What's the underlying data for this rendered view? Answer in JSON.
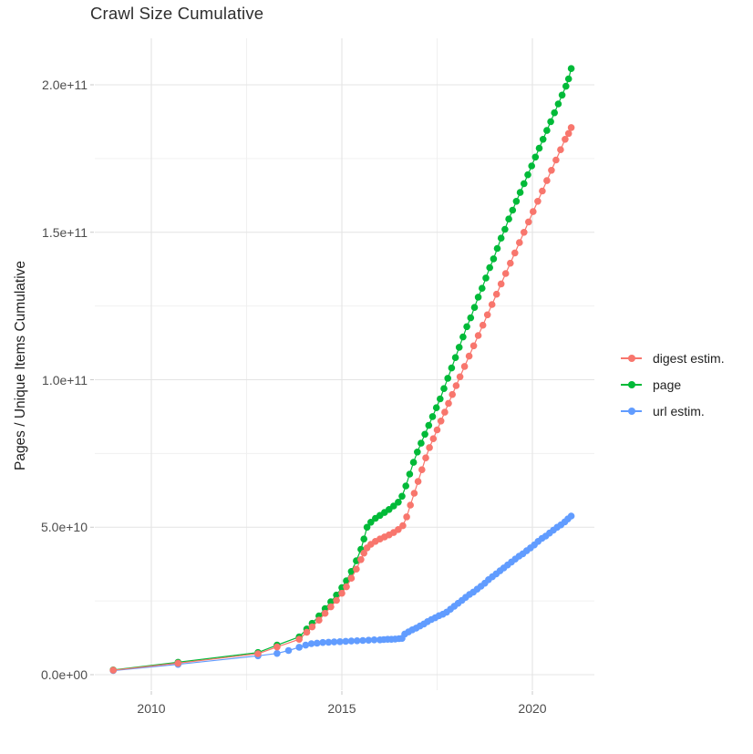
{
  "chart_data": {
    "type": "scatter",
    "title": "Crawl Size Cumulative",
    "xlabel": "",
    "ylabel": "Pages / Unique Items Cumulative",
    "value_unit": 10000000000.0,
    "x_range_years": [
      2008.5,
      2021.65
    ],
    "y_range": [
      0,
      216000000000.0
    ],
    "grid": true,
    "legend_position": "right",
    "x_ticks": [
      {
        "label": "2010",
        "year": 2010
      },
      {
        "label": "2015",
        "year": 2015
      },
      {
        "label": "2020",
        "year": 2020
      }
    ],
    "x_minor": [
      2012.5,
      2017.5
    ],
    "y_ticks": [
      {
        "label": "0.0e+00",
        "value": 0
      },
      {
        "label": "5.0e+10",
        "value": 5
      },
      {
        "label": "1.0e+11",
        "value": 10
      },
      {
        "label": "1.5e+11",
        "value": 15
      },
      {
        "label": "2.0e+11",
        "value": 20
      }
    ],
    "y_minor": [
      2.5,
      7.5,
      12.5,
      17.5
    ],
    "series": [
      {
        "name": "digest estim.",
        "color": "#F8766D",
        "points": [
          [
            2009.0,
            0.15
          ],
          [
            2010.7,
            0.39
          ],
          [
            2012.8,
            0.71
          ],
          [
            2013.3,
            0.94
          ],
          [
            2013.88,
            1.2
          ],
          [
            2014.08,
            1.44
          ],
          [
            2014.22,
            1.62
          ],
          [
            2014.4,
            1.85
          ],
          [
            2014.56,
            2.08
          ],
          [
            2014.71,
            2.3
          ],
          [
            2014.86,
            2.52
          ],
          [
            2015.0,
            2.76
          ],
          [
            2015.12,
            2.98
          ],
          [
            2015.25,
            3.27
          ],
          [
            2015.38,
            3.58
          ],
          [
            2015.5,
            3.9
          ],
          [
            2015.58,
            4.12
          ],
          [
            2015.66,
            4.3
          ],
          [
            2015.76,
            4.42
          ],
          [
            2015.88,
            4.52
          ],
          [
            2016.0,
            4.6
          ],
          [
            2016.12,
            4.67
          ],
          [
            2016.24,
            4.74
          ],
          [
            2016.36,
            4.82
          ],
          [
            2016.48,
            4.92
          ],
          [
            2016.6,
            5.05
          ],
          [
            2016.7,
            5.35
          ],
          [
            2016.8,
            5.75
          ],
          [
            2016.9,
            6.15
          ],
          [
            2017.0,
            6.55
          ],
          [
            2017.1,
            6.95
          ],
          [
            2017.2,
            7.35
          ],
          [
            2017.3,
            7.7
          ],
          [
            2017.4,
            8.0
          ],
          [
            2017.5,
            8.3
          ],
          [
            2017.6,
            8.6
          ],
          [
            2017.7,
            8.9
          ],
          [
            2017.8,
            9.2
          ],
          [
            2017.9,
            9.5
          ],
          [
            2018.0,
            9.8
          ],
          [
            2018.1,
            10.1
          ],
          [
            2018.22,
            10.45
          ],
          [
            2018.34,
            10.8
          ],
          [
            2018.46,
            11.15
          ],
          [
            2018.58,
            11.5
          ],
          [
            2018.7,
            11.85
          ],
          [
            2018.82,
            12.2
          ],
          [
            2018.94,
            12.55
          ],
          [
            2019.06,
            12.9
          ],
          [
            2019.18,
            13.25
          ],
          [
            2019.3,
            13.6
          ],
          [
            2019.42,
            13.95
          ],
          [
            2019.54,
            14.3
          ],
          [
            2019.66,
            14.65
          ],
          [
            2019.78,
            15.0
          ],
          [
            2019.9,
            15.35
          ],
          [
            2020.02,
            15.7
          ],
          [
            2020.14,
            16.05
          ],
          [
            2020.26,
            16.4
          ],
          [
            2020.38,
            16.75
          ],
          [
            2020.5,
            17.1
          ],
          [
            2020.62,
            17.45
          ],
          [
            2020.74,
            17.8
          ],
          [
            2020.86,
            18.15
          ],
          [
            2020.95,
            18.35
          ],
          [
            2021.02,
            18.55
          ]
        ]
      },
      {
        "name": "page",
        "color": "#00BA38",
        "points": [
          [
            2009.0,
            0.16
          ],
          [
            2010.7,
            0.42
          ],
          [
            2012.8,
            0.75
          ],
          [
            2013.3,
            1.0
          ],
          [
            2013.88,
            1.28
          ],
          [
            2014.08,
            1.55
          ],
          [
            2014.22,
            1.74
          ],
          [
            2014.4,
            1.99
          ],
          [
            2014.56,
            2.24
          ],
          [
            2014.71,
            2.47
          ],
          [
            2014.86,
            2.7
          ],
          [
            2015.0,
            2.95
          ],
          [
            2015.12,
            3.18
          ],
          [
            2015.25,
            3.5
          ],
          [
            2015.38,
            3.86
          ],
          [
            2015.5,
            4.25
          ],
          [
            2015.58,
            4.6
          ],
          [
            2015.66,
            5.0
          ],
          [
            2015.76,
            5.17
          ],
          [
            2015.88,
            5.3
          ],
          [
            2016.0,
            5.4
          ],
          [
            2016.12,
            5.5
          ],
          [
            2016.24,
            5.6
          ],
          [
            2016.36,
            5.72
          ],
          [
            2016.48,
            5.85
          ],
          [
            2016.58,
            6.05
          ],
          [
            2016.68,
            6.4
          ],
          [
            2016.78,
            6.8
          ],
          [
            2016.88,
            7.2
          ],
          [
            2016.98,
            7.55
          ],
          [
            2017.08,
            7.85
          ],
          [
            2017.18,
            8.15
          ],
          [
            2017.28,
            8.45
          ],
          [
            2017.38,
            8.75
          ],
          [
            2017.48,
            9.05
          ],
          [
            2017.58,
            9.35
          ],
          [
            2017.68,
            9.7
          ],
          [
            2017.78,
            10.05
          ],
          [
            2017.88,
            10.4
          ],
          [
            2017.98,
            10.75
          ],
          [
            2018.08,
            11.1
          ],
          [
            2018.18,
            11.45
          ],
          [
            2018.28,
            11.8
          ],
          [
            2018.38,
            12.1
          ],
          [
            2018.48,
            12.45
          ],
          [
            2018.58,
            12.8
          ],
          [
            2018.68,
            13.1
          ],
          [
            2018.78,
            13.45
          ],
          [
            2018.88,
            13.8
          ],
          [
            2018.98,
            14.1
          ],
          [
            2019.08,
            14.45
          ],
          [
            2019.18,
            14.8
          ],
          [
            2019.28,
            15.1
          ],
          [
            2019.38,
            15.45
          ],
          [
            2019.48,
            15.75
          ],
          [
            2019.58,
            16.05
          ],
          [
            2019.68,
            16.35
          ],
          [
            2019.78,
            16.65
          ],
          [
            2019.88,
            16.95
          ],
          [
            2019.98,
            17.25
          ],
          [
            2020.08,
            17.55
          ],
          [
            2020.18,
            17.85
          ],
          [
            2020.28,
            18.15
          ],
          [
            2020.38,
            18.45
          ],
          [
            2020.48,
            18.75
          ],
          [
            2020.58,
            19.05
          ],
          [
            2020.68,
            19.35
          ],
          [
            2020.78,
            19.65
          ],
          [
            2020.88,
            19.95
          ],
          [
            2020.95,
            20.2
          ],
          [
            2021.02,
            20.55
          ]
        ]
      },
      {
        "name": "url estim.",
        "color": "#619CFF",
        "points": [
          [
            2009.0,
            0.14
          ],
          [
            2010.7,
            0.35
          ],
          [
            2012.8,
            0.64
          ],
          [
            2013.3,
            0.72
          ],
          [
            2013.6,
            0.82
          ],
          [
            2013.88,
            0.93
          ],
          [
            2014.05,
            1.0
          ],
          [
            2014.2,
            1.05
          ],
          [
            2014.35,
            1.07
          ],
          [
            2014.5,
            1.09
          ],
          [
            2014.65,
            1.1
          ],
          [
            2014.8,
            1.11
          ],
          [
            2014.95,
            1.12
          ],
          [
            2015.1,
            1.13
          ],
          [
            2015.25,
            1.14
          ],
          [
            2015.4,
            1.15
          ],
          [
            2015.55,
            1.16
          ],
          [
            2015.7,
            1.17
          ],
          [
            2015.85,
            1.18
          ],
          [
            2016.0,
            1.18
          ],
          [
            2016.1,
            1.19
          ],
          [
            2016.2,
            1.2
          ],
          [
            2016.3,
            1.2
          ],
          [
            2016.4,
            1.21
          ],
          [
            2016.5,
            1.22
          ],
          [
            2016.58,
            1.23
          ],
          [
            2016.65,
            1.38
          ],
          [
            2016.75,
            1.45
          ],
          [
            2016.85,
            1.52
          ],
          [
            2016.95,
            1.58
          ],
          [
            2017.05,
            1.65
          ],
          [
            2017.15,
            1.72
          ],
          [
            2017.25,
            1.8
          ],
          [
            2017.35,
            1.87
          ],
          [
            2017.45,
            1.93
          ],
          [
            2017.55,
            2.0
          ],
          [
            2017.65,
            2.05
          ],
          [
            2017.75,
            2.12
          ],
          [
            2017.85,
            2.22
          ],
          [
            2017.95,
            2.32
          ],
          [
            2018.05,
            2.42
          ],
          [
            2018.15,
            2.52
          ],
          [
            2018.25,
            2.62
          ],
          [
            2018.35,
            2.72
          ],
          [
            2018.45,
            2.8
          ],
          [
            2018.55,
            2.9
          ],
          [
            2018.65,
            3.0
          ],
          [
            2018.75,
            3.1
          ],
          [
            2018.85,
            3.22
          ],
          [
            2018.95,
            3.32
          ],
          [
            2019.05,
            3.42
          ],
          [
            2019.15,
            3.52
          ],
          [
            2019.25,
            3.62
          ],
          [
            2019.35,
            3.72
          ],
          [
            2019.45,
            3.82
          ],
          [
            2019.55,
            3.92
          ],
          [
            2019.65,
            4.02
          ],
          [
            2019.75,
            4.1
          ],
          [
            2019.85,
            4.2
          ],
          [
            2019.95,
            4.3
          ],
          [
            2020.05,
            4.4
          ],
          [
            2020.15,
            4.52
          ],
          [
            2020.25,
            4.62
          ],
          [
            2020.35,
            4.7
          ],
          [
            2020.45,
            4.8
          ],
          [
            2020.55,
            4.9
          ],
          [
            2020.65,
            5.0
          ],
          [
            2020.75,
            5.08
          ],
          [
            2020.85,
            5.18
          ],
          [
            2020.93,
            5.28
          ],
          [
            2021.02,
            5.38
          ]
        ]
      }
    ]
  }
}
